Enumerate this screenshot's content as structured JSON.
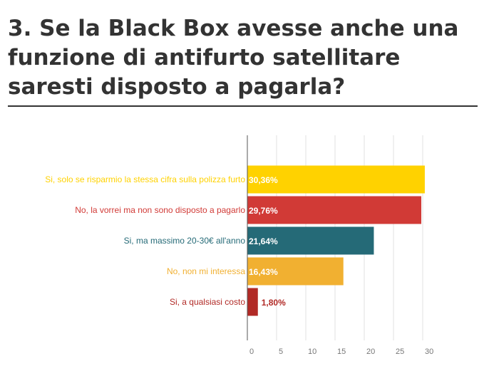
{
  "title": "3. Se la Black Box avesse anche una funzione di antifurto satellitare saresti disposto a pagarla?",
  "chart_data": {
    "type": "bar",
    "orientation": "horizontal",
    "title": "3. Se la Black Box avesse anche una funzione di antifurto satellitare saresti disposto a pagarla?",
    "xlim": [
      0,
      30
    ],
    "ticks": [
      0,
      5,
      10,
      15,
      20,
      25,
      30
    ],
    "tick_labels": [
      "0",
      "5",
      "10",
      "15",
      "20",
      "25",
      "30"
    ],
    "grid": true,
    "bars": [
      {
        "category": "Si, solo se risparmio la stessa cifra sulla polizza furto",
        "value": 30.36,
        "label": "30,36%",
        "color": "#FFD200",
        "label_color": "#ffffff"
      },
      {
        "category": "No, la vorrei ma non sono disposto a pagarlo",
        "value": 29.76,
        "label": "29,76%",
        "color": "#D13A36",
        "label_color": "#ffffff"
      },
      {
        "category": "Si, ma massimo 20-30€ all'anno",
        "value": 21.64,
        "label": "21,64%",
        "color": "#256A77",
        "label_color": "#ffffff"
      },
      {
        "category": "No, non mi interessa",
        "value": 16.43,
        "label": "16,43%",
        "color": "#F1B031",
        "label_color": "#ffffff"
      },
      {
        "category": "Si, a qualsiasi costo",
        "value": 1.8,
        "label": "1,80%",
        "color": "#B12A26",
        "label_color": "#B12A26"
      }
    ]
  }
}
